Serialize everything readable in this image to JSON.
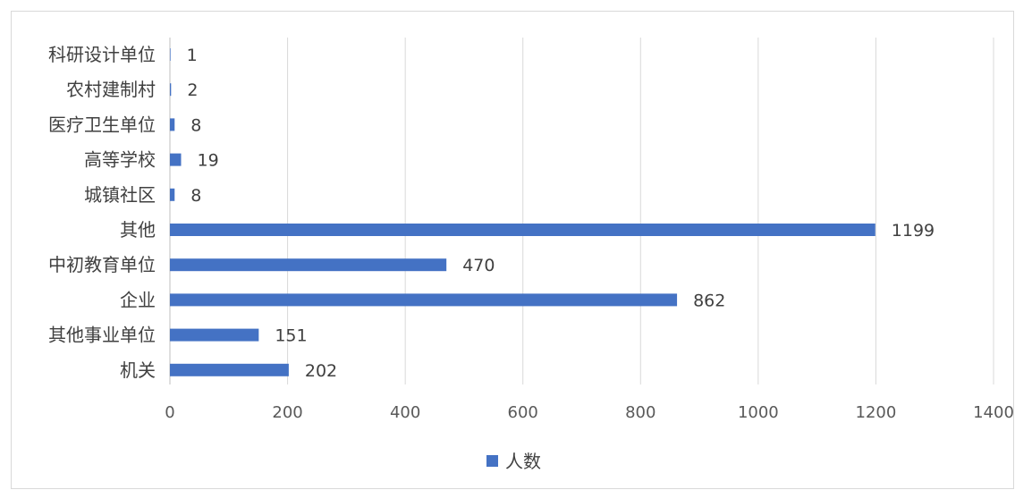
{
  "chart_data": {
    "type": "bar",
    "orientation": "horizontal",
    "categories": [
      "科研设计单位",
      "农村建制村",
      "医疗卫生单位",
      "高等学校",
      "城镇社区",
      "其他",
      "中初教育单位",
      "企业",
      "其他事业单位",
      "机关"
    ],
    "series": [
      {
        "name": "人数",
        "values": [
          1,
          2,
          8,
          19,
          8,
          1199,
          470,
          862,
          151,
          202
        ]
      }
    ],
    "xlim": [
      0,
      1400
    ],
    "xticks": [
      0,
      200,
      400,
      600,
      800,
      1000,
      1200,
      1400
    ],
    "grid": "vertical",
    "legend_position": "bottom",
    "bar_color": "#4472c4",
    "grid_color": "#d9d9d9",
    "title": "",
    "xlabel": "",
    "ylabel": ""
  }
}
